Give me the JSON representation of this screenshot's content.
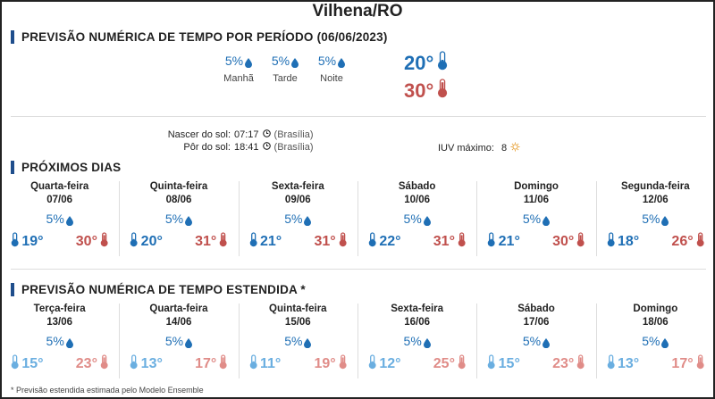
{
  "city": "Vilhena/RO",
  "period_section": {
    "title": "PREVISÃO NUMÉRICA DE TEMPO POR PERÍODO (06/06/2023)",
    "periods": [
      {
        "pct": "5%",
        "name": "Manhã"
      },
      {
        "pct": "5%",
        "name": "Tarde"
      },
      {
        "pct": "5%",
        "name": "Noite"
      }
    ],
    "min_temp": "20°",
    "max_temp": "30°"
  },
  "sun": {
    "sunrise_label": "Nascer do sol:",
    "sunrise_time": "07:17",
    "sunrise_tz": "(Brasília)",
    "sunset_label": "Pôr do sol:",
    "sunset_time": "18:41",
    "sunset_tz": "(Brasília)",
    "uv_label": "IUV máximo:",
    "uv_value": "8"
  },
  "next_days": {
    "title": "PRÓXIMOS DIAS",
    "days": [
      {
        "name": "Quarta-feira",
        "date": "07/06",
        "pct": "5%",
        "min": "19°",
        "max": "30°"
      },
      {
        "name": "Quinta-feira",
        "date": "08/06",
        "pct": "5%",
        "min": "20°",
        "max": "31°"
      },
      {
        "name": "Sexta-feira",
        "date": "09/06",
        "pct": "5%",
        "min": "21°",
        "max": "31°"
      },
      {
        "name": "Sábado",
        "date": "10/06",
        "pct": "5%",
        "min": "22°",
        "max": "31°"
      },
      {
        "name": "Domingo",
        "date": "11/06",
        "pct": "5%",
        "min": "21°",
        "max": "30°"
      },
      {
        "name": "Segunda-feira",
        "date": "12/06",
        "pct": "5%",
        "min": "18°",
        "max": "26°"
      }
    ]
  },
  "extended": {
    "title": "PREVISÃO NUMÉRICA DE TEMPO ESTENDIDA *",
    "days": [
      {
        "name": "Terça-feira",
        "date": "13/06",
        "pct": "5%",
        "min": "15°",
        "max": "23°"
      },
      {
        "name": "Quarta-feira",
        "date": "14/06",
        "pct": "5%",
        "min": "13°",
        "max": "17°"
      },
      {
        "name": "Quinta-feira",
        "date": "15/06",
        "pct": "5%",
        "min": "11°",
        "max": "19°"
      },
      {
        "name": "Sexta-feira",
        "date": "16/06",
        "pct": "5%",
        "min": "12°",
        "max": "25°"
      },
      {
        "name": "Sábado",
        "date": "17/06",
        "pct": "5%",
        "min": "15°",
        "max": "23°"
      },
      {
        "name": "Domingo",
        "date": "18/06",
        "pct": "5%",
        "min": "13°",
        "max": "17°"
      }
    ],
    "note": "* Previsão estendida estimada pelo Modelo Ensemble"
  },
  "colors": {
    "accent": "#1f4e8c",
    "rain_blue": "#1f6fb5",
    "min_blue": "#1f6fb5",
    "max_red": "#c0504d",
    "ext_min_blue": "#6aaee0",
    "ext_max_red": "#e08c88",
    "sun_orange": "#e8a33a"
  },
  "icons": {
    "rain": "water-drop-icon",
    "min_temp": "thermometer-low-icon",
    "max_temp": "thermometer-high-icon",
    "clock": "clock-icon",
    "uv": "sun-icon"
  }
}
